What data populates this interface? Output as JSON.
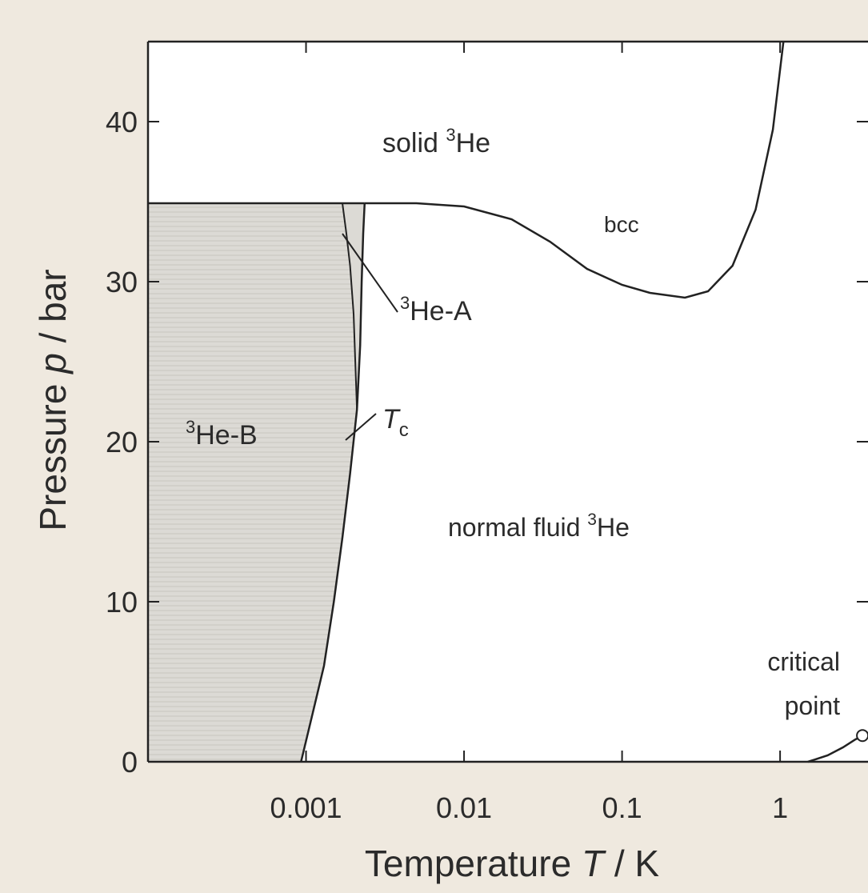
{
  "colors": {
    "page_tint": "#efe9df",
    "plot_bg": "#ffffff",
    "b_phase_fill": "#dcdad5",
    "b_phase_hatch": "#c9c6c0",
    "line": "#222222",
    "text": "#2b2b2b"
  },
  "chart_data": {
    "type": "line",
    "title": "",
    "xlabel_pre": "Temperature ",
    "xlabel_var": "T",
    "xlabel_post": " / K",
    "ylabel_pre": "Pressure ",
    "ylabel_var": "p",
    "ylabel_post": " / bar",
    "x_scale": "log",
    "xlim": [
      0.0001,
      3.6
    ],
    "ylim": [
      0,
      45
    ],
    "x_ticks": [
      0.001,
      0.01,
      0.1,
      1
    ],
    "x_tick_labels": [
      "0.001",
      "0.01",
      "0.1",
      "1"
    ],
    "y_ticks": [
      0,
      10,
      20,
      30,
      40
    ],
    "y_tick_labels": [
      "0",
      "10",
      "20",
      "30",
      "40"
    ],
    "grid": false,
    "series": [
      {
        "key": "melting",
        "points": [
          [
            0.00235,
            34.9
          ],
          [
            0.005,
            34.9
          ],
          [
            0.01,
            34.7
          ],
          [
            0.02,
            33.9
          ],
          [
            0.035,
            32.5
          ],
          [
            0.06,
            30.8
          ],
          [
            0.1,
            29.8
          ],
          [
            0.15,
            29.3
          ],
          [
            0.25,
            29.0
          ],
          [
            0.35,
            29.4
          ],
          [
            0.5,
            31.0
          ],
          [
            0.7,
            34.5
          ],
          [
            0.9,
            39.5
          ],
          [
            1.05,
            45.0
          ]
        ]
      },
      {
        "key": "tc",
        "points": [
          [
            0.00093,
            0
          ],
          [
            0.0011,
            3
          ],
          [
            0.0013,
            6
          ],
          [
            0.0015,
            10
          ],
          [
            0.0017,
            14
          ],
          [
            0.0019,
            18
          ],
          [
            0.0021,
            22
          ],
          [
            0.0022,
            26
          ],
          [
            0.00225,
            30
          ],
          [
            0.0023,
            33
          ],
          [
            0.00235,
            34.9
          ]
        ]
      },
      {
        "key": "ab",
        "points": [
          [
            0.0021,
            22
          ],
          [
            0.00205,
            25
          ],
          [
            0.002,
            28
          ],
          [
            0.0019,
            31
          ],
          [
            0.0018,
            33
          ],
          [
            0.0017,
            34.9
          ]
        ]
      },
      {
        "key": "vapor",
        "points": [
          [
            1.5,
            0
          ],
          [
            2.0,
            0.4
          ],
          [
            2.5,
            0.9
          ],
          [
            3.0,
            1.4
          ],
          [
            3.3,
            1.6
          ]
        ]
      }
    ],
    "phase_boundary_solid_y": 34.9,
    "critical_point": [
      3.32,
      1.64
    ],
    "labels": {
      "solid": {
        "pre": "solid ",
        "sup": "3",
        "post": "He"
      },
      "bcc": "bcc",
      "he_a": {
        "sup": "3",
        "post": "He-A"
      },
      "he_b": {
        "sup": "3",
        "post": "He-B"
      },
      "tc": {
        "var": "T",
        "sub": "c"
      },
      "normal": {
        "pre": "normal fluid ",
        "sup": "3",
        "post": "He"
      },
      "critical_line1": "critical",
      "critical_line2": "point"
    }
  }
}
